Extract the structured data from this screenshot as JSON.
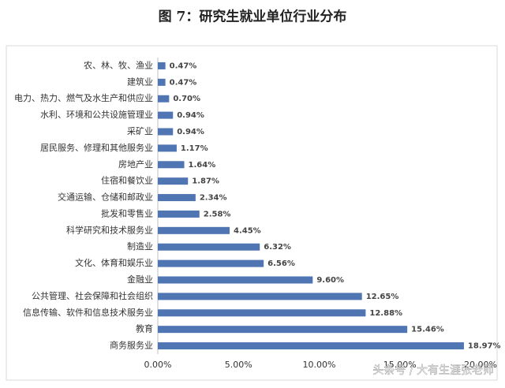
{
  "chart_data": {
    "type": "hbar",
    "title": "图 7：研究生就业单位行业分布",
    "categories": [
      "农、林、牧、渔业",
      "建筑业",
      "电力、热力、燃气及水生产和供应业",
      "水利、环境和公共设施管理业",
      "采矿业",
      "居民服务、修理和其他服务业",
      "房地产业",
      "住宿和餐饮业",
      "交通运输、仓储和邮政业",
      "批发和零售业",
      "科学研究和技术服务业",
      "制造业",
      "文化、体育和娱乐业",
      "金融业",
      "公共管理、社会保障和社会组织",
      "信息传输、软件和信息技术服务业",
      "教育",
      "商务服务业"
    ],
    "values": [
      0.47,
      0.47,
      0.7,
      0.94,
      0.94,
      1.17,
      1.64,
      1.87,
      2.34,
      2.58,
      4.45,
      6.32,
      6.56,
      9.6,
      12.65,
      12.88,
      15.46,
      18.97
    ],
    "value_labels": [
      "0.47%",
      "0.47%",
      "0.70%",
      "0.94%",
      "0.94%",
      "1.17%",
      "1.64%",
      "1.87%",
      "2.34%",
      "2.58%",
      "4.45%",
      "6.32%",
      "6.56%",
      "9.60%",
      "12.65%",
      "12.88%",
      "15.46%",
      "18.97%"
    ],
    "color": "#4f75b3",
    "xlim": [
      0,
      20
    ],
    "xticks": [
      {
        "value": 0,
        "label": "0.00%"
      },
      {
        "value": 5,
        "label": "5.00%"
      },
      {
        "value": 10,
        "label": "10.00%"
      },
      {
        "value": 15,
        "label": "15.00%"
      },
      {
        "value": 20,
        "label": "20.00%"
      }
    ],
    "grid": false,
    "watermark": "头条号 / 大有生涯张老师"
  }
}
